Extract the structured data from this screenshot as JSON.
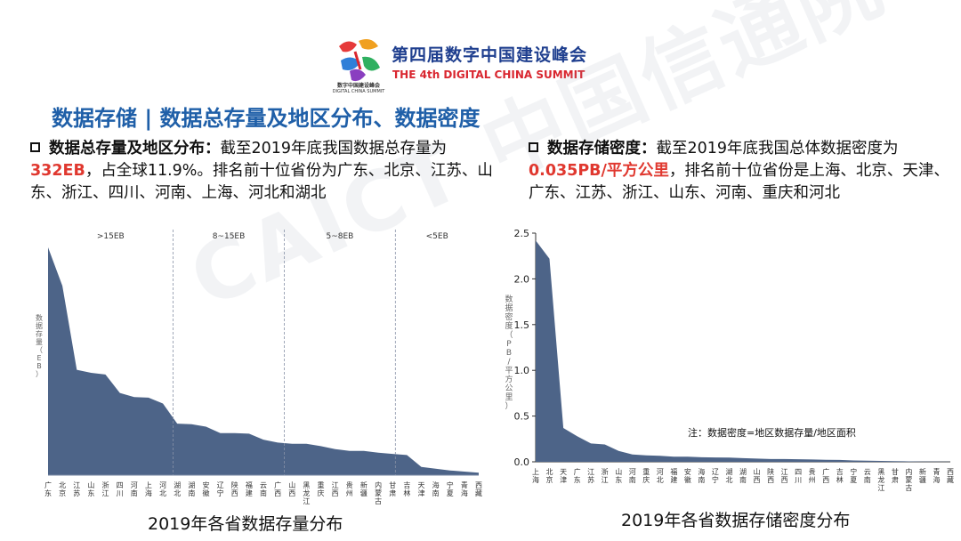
{
  "header": {
    "summit_title_cn": "第四届数字中国建设峰会",
    "summit_title_en": "THE 4th DIGITAL CHINA SUMMIT",
    "logo_caption_cn": "数字中国建设峰会",
    "logo_caption_en": "DIGITAL CHINA SUMMIT",
    "logo_icon": "digital-china-logo-icon"
  },
  "page_title": "数据存储 | 数据总存量及地区分布、数据密度",
  "watermark": "CAICT 中国信通院",
  "left_block": {
    "lead": "数据总存量及地区分布：",
    "text1": "截至2019年底我国数据总存量为",
    "highlight": "332EB",
    "text2": "，占全球11.9%。排名前十位省份为广东、北京、江苏、山东、浙江、四川、河南、上海、河北和湖北"
  },
  "right_block": {
    "lead": "数据存储密度：",
    "text1": "截至2019年底我国总体数据密度为",
    "highlight": "0.035PB/平方公里",
    "text2": "，排名前十位省份是上海、北京、天津、广东、江苏、浙江、山东、河南、重庆和河北"
  },
  "colors": {
    "fill": "#4d6488",
    "title_blue": "#1f5fa8",
    "highlight_red": "#e0382f",
    "summit_blue": "#1f3f8f"
  },
  "chart_data": [
    {
      "type": "area",
      "title": "2019年各省数据存量分布",
      "ylabel": "数据存量（EB）",
      "xlabel": "",
      "y_ticks_shown": false,
      "ylim": [
        0,
        40
      ],
      "bands": [
        {
          "label": ">15EB",
          "start": 0,
          "end": 9
        },
        {
          "label": "8~15EB",
          "start": 9,
          "end": 17
        },
        {
          "label": "5~8EB",
          "start": 17,
          "end": 25
        },
        {
          "label": "<5EB",
          "start": 25,
          "end": 31
        }
      ],
      "categories": [
        "广东",
        "北京",
        "江苏",
        "山东",
        "浙江",
        "四川",
        "河南",
        "上海",
        "河北",
        "湖北",
        "湖南",
        "安徽",
        "辽宁",
        "陕西",
        "福建",
        "云南",
        "广西",
        "山西",
        "黑龙江",
        "重庆",
        "江西",
        "贵州",
        "新疆",
        "内蒙古",
        "甘肃",
        "吉林",
        "天津",
        "海南",
        "宁夏",
        "青海",
        "西藏"
      ],
      "values": [
        38.5,
        32.0,
        17.8,
        17.3,
        17.0,
        13.9,
        13.2,
        13.1,
        12.1,
        8.7,
        8.6,
        8.2,
        7.1,
        7.1,
        7.0,
        6.0,
        5.5,
        5.3,
        5.3,
        4.9,
        4.4,
        4.1,
        4.1,
        3.8,
        3.6,
        3.4,
        1.4,
        1.1,
        0.8,
        0.6,
        0.4
      ]
    },
    {
      "type": "area",
      "title": "2019年各省数据存储密度分布",
      "ylabel": "数据密度（PB/平方公里）",
      "xlabel": "",
      "ylim": [
        0,
        2.5
      ],
      "yticks": [
        "0.0",
        "0.5",
        "1.0",
        "1.5",
        "2.0",
        "2.5"
      ],
      "annotation": "注：数据密度=地区数据存量/地区面积",
      "categories": [
        "上海",
        "北京",
        "天津",
        "广东",
        "江苏",
        "浙江",
        "山东",
        "河南",
        "重庆",
        "河北",
        "福建",
        "安徽",
        "海南",
        "辽宁",
        "湖北",
        "湖南",
        "山西",
        "陕西",
        "江西",
        "四川",
        "贵州",
        "广西",
        "吉林",
        "宁夏",
        "云南",
        "黑龙江",
        "甘肃",
        "内蒙古",
        "新疆",
        "青海",
        "西藏"
      ],
      "values": [
        2.42,
        2.22,
        0.37,
        0.28,
        0.2,
        0.19,
        0.12,
        0.08,
        0.07,
        0.065,
        0.055,
        0.055,
        0.05,
        0.048,
        0.046,
        0.04,
        0.035,
        0.03,
        0.03,
        0.028,
        0.025,
        0.022,
        0.02,
        0.015,
        0.013,
        0.01,
        0.008,
        0.005,
        0.003,
        0.002,
        0.001
      ]
    }
  ]
}
